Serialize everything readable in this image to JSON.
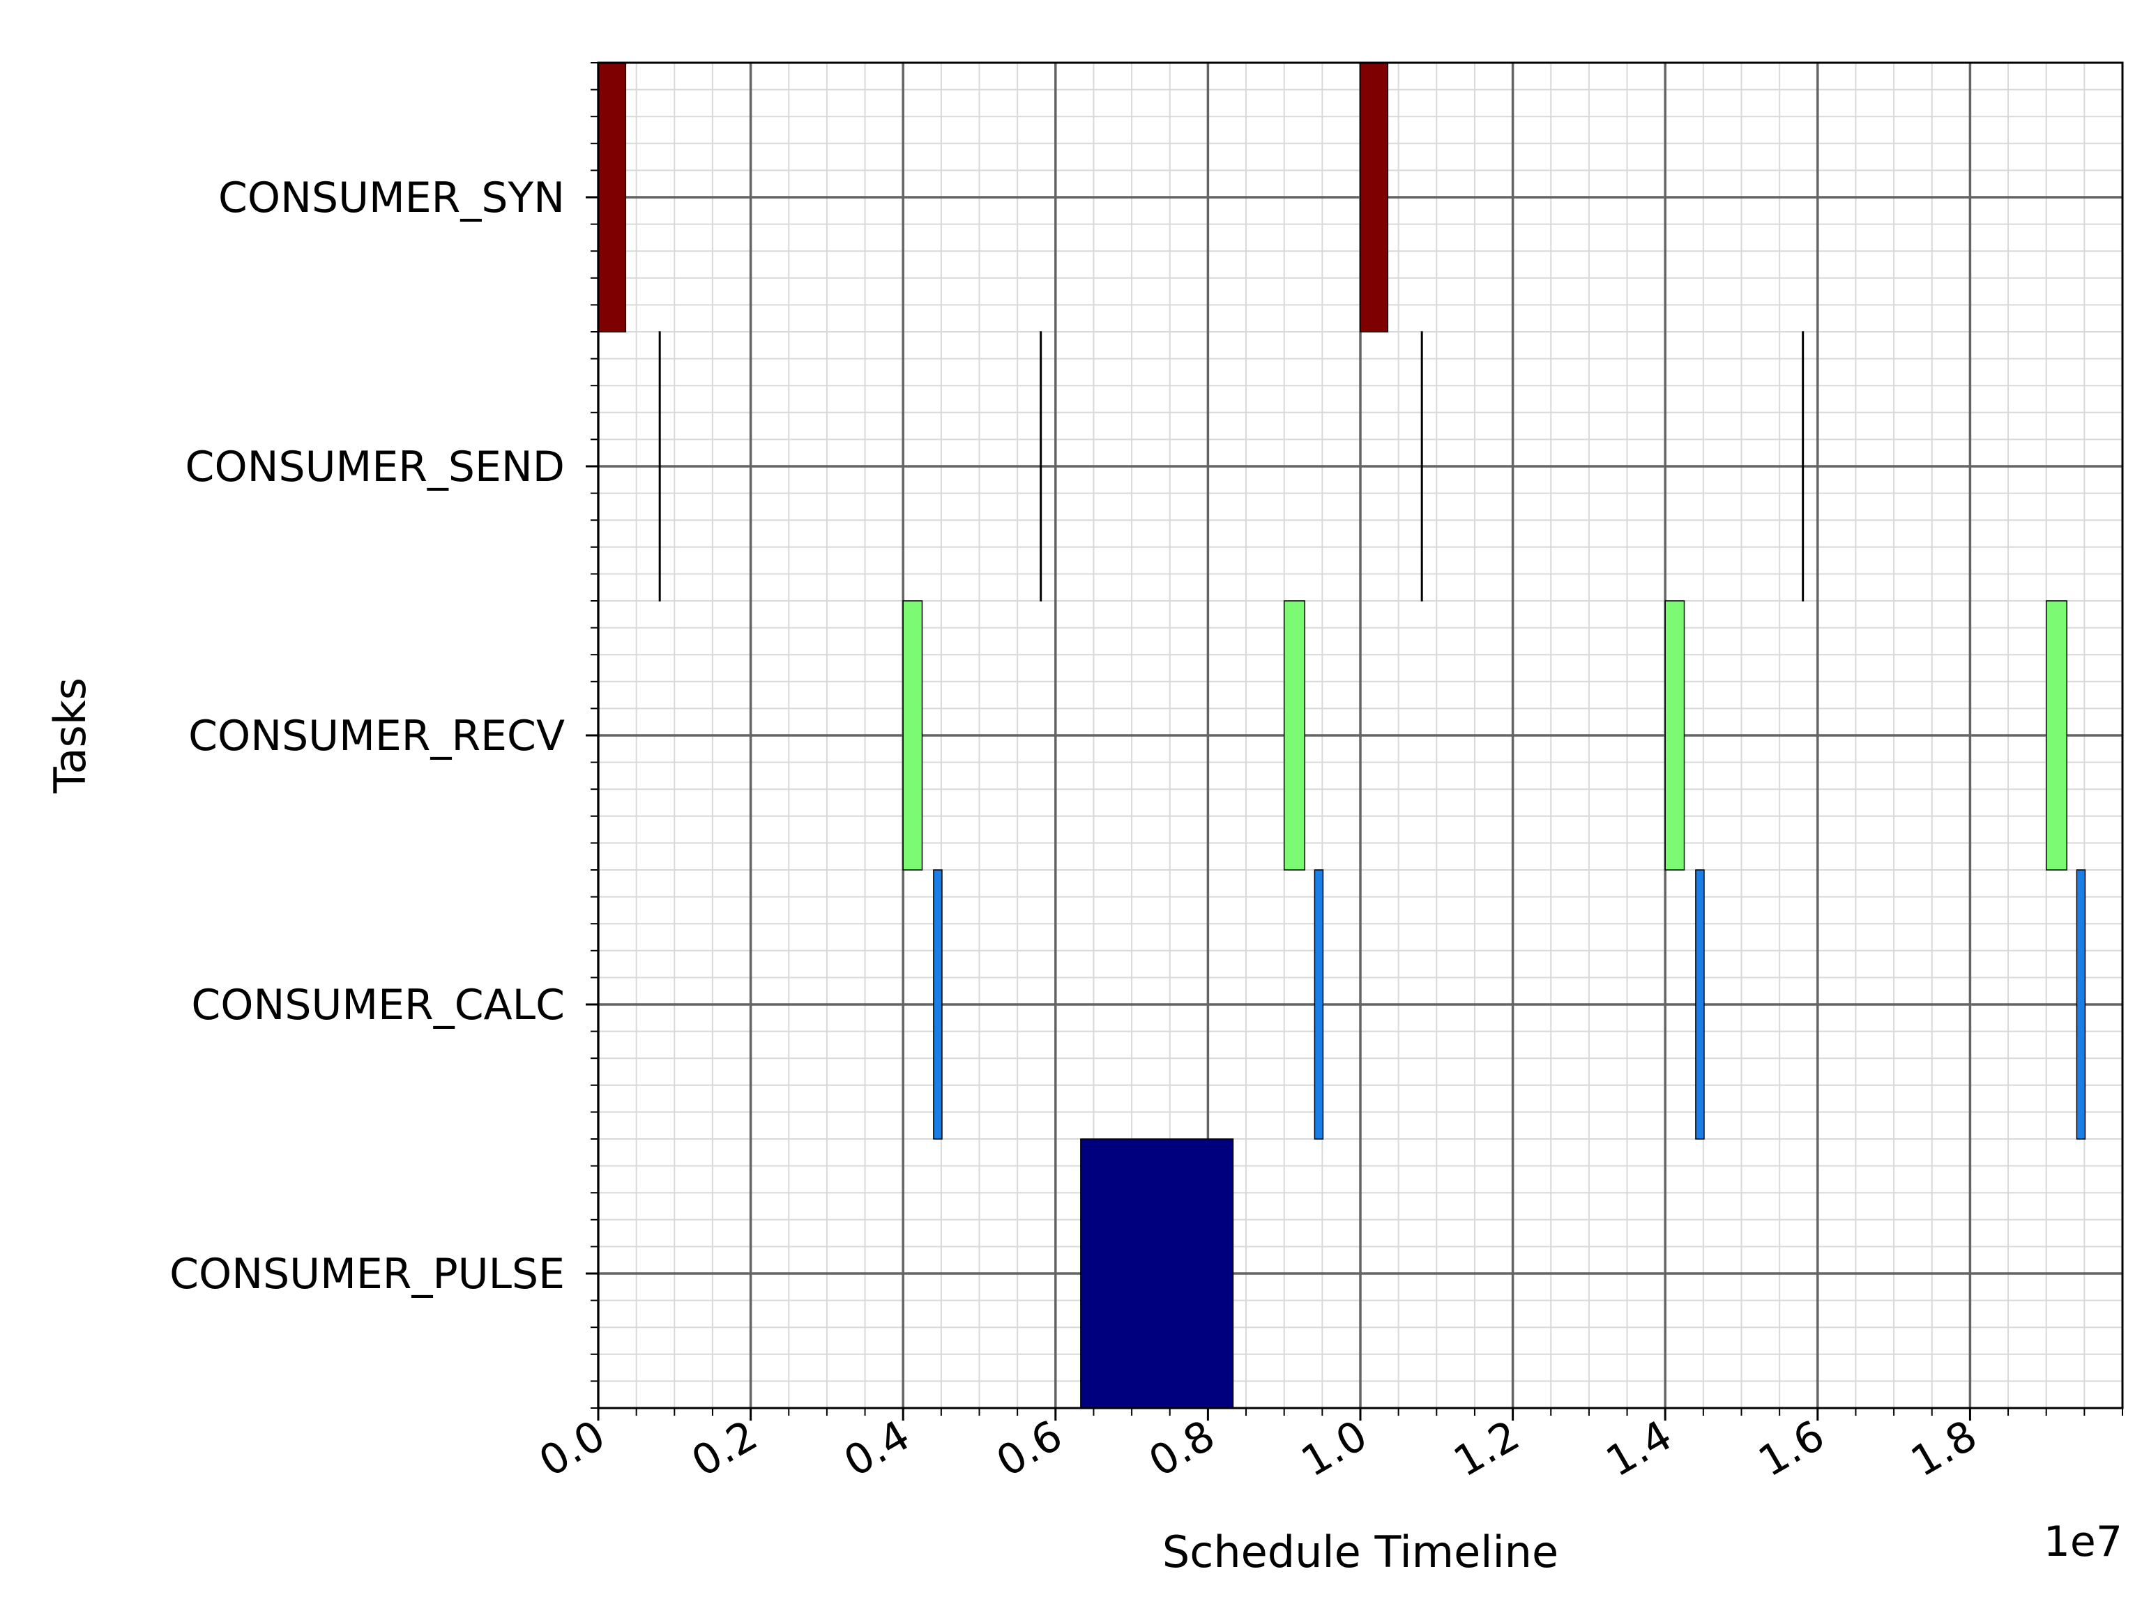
{
  "chart_data": {
    "type": "gantt",
    "xlabel": "Schedule Timeline",
    "ylabel": "Tasks",
    "x_offset_label": "1e7",
    "xlim": [
      0,
      2.0
    ],
    "x_tick_values": [
      0.0,
      0.2,
      0.4,
      0.6,
      0.8,
      1.0,
      1.2,
      1.4,
      1.6,
      1.8
    ],
    "x_tick_labels": [
      "0.0",
      "0.2",
      "0.4",
      "0.6",
      "0.8",
      "1.0",
      "1.2",
      "1.4",
      "1.6",
      "1.8"
    ],
    "categories": [
      "CONSUMER_SYN",
      "CONSUMER_SEND",
      "CONSUMER_RECV",
      "CONSUMER_CALC",
      "CONSUMER_PULSE"
    ],
    "grid": true,
    "series": [
      {
        "task": "CONSUMER_SYN",
        "color": "#7f0000",
        "intervals": [
          [
            0.0,
            0.036
          ],
          [
            1.0,
            1.036
          ]
        ]
      },
      {
        "task": "CONSUMER_SEND",
        "color": "#000000",
        "intervals": [
          [
            0.08,
            0.0805
          ],
          [
            0.58,
            0.5805
          ],
          [
            1.08,
            1.0805
          ],
          [
            1.58,
            1.5805
          ]
        ]
      },
      {
        "task": "CONSUMER_RECV",
        "color": "#7dfa74",
        "intervals": [
          [
            0.4,
            0.425
          ],
          [
            0.9,
            0.927
          ],
          [
            1.4,
            1.425
          ],
          [
            1.9,
            1.927
          ]
        ]
      },
      {
        "task": "CONSUMER_CALC",
        "color": "#1a7ee6",
        "intervals": [
          [
            0.44,
            0.451
          ],
          [
            0.94,
            0.951
          ],
          [
            1.44,
            1.451
          ],
          [
            1.94,
            1.951
          ]
        ]
      },
      {
        "task": "CONSUMER_PULSE",
        "color": "#00007f",
        "intervals": [
          [
            0.633,
            0.833
          ]
        ]
      }
    ]
  }
}
